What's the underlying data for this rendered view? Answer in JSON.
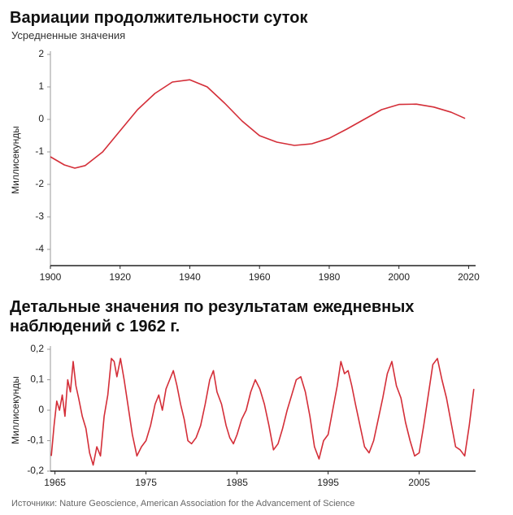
{
  "chart_data": [
    {
      "type": "line",
      "title": "Вариации продолжительности суток",
      "subtitle": "Усредненные значения",
      "y_label": "Миллисекунды",
      "color": "#d42e38",
      "x": [
        1900,
        1904,
        1907,
        1910,
        1915,
        1920,
        1925,
        1930,
        1935,
        1940,
        1945,
        1950,
        1955,
        1960,
        1965,
        1970,
        1975,
        1980,
        1985,
        1990,
        1995,
        2000,
        2005,
        2010,
        2015,
        2019
      ],
      "values": [
        -1.15,
        -1.4,
        -1.5,
        -1.42,
        -1.0,
        -0.35,
        0.3,
        0.8,
        1.15,
        1.22,
        1.0,
        0.5,
        -0.05,
        -0.5,
        -0.7,
        -0.8,
        -0.75,
        -0.58,
        -0.3,
        0.0,
        0.3,
        0.46,
        0.47,
        0.38,
        0.22,
        0.03
      ],
      "xlim": [
        1900,
        2022
      ],
      "xticks": [
        1900,
        1920,
        1940,
        1960,
        1980,
        2000,
        2020
      ],
      "ylim": [
        -4.5,
        2
      ],
      "yticks": [
        2,
        1,
        0,
        -1,
        -2,
        -3,
        -4
      ]
    },
    {
      "type": "line",
      "title": "Детальные значения по результатам ежедневных наблюдений с 1962 г.",
      "y_label": "Миллисекунды",
      "color": "#d42e38",
      "x": [
        1964.6,
        1964.9,
        1965.2,
        1965.5,
        1965.8,
        1966.1,
        1966.4,
        1966.7,
        1967.0,
        1967.3,
        1967.6,
        1968.0,
        1968.4,
        1968.8,
        1969.2,
        1969.6,
        1970.0,
        1970.4,
        1970.8,
        1971.2,
        1971.5,
        1971.8,
        1972.2,
        1972.6,
        1973.0,
        1973.5,
        1974.0,
        1974.5,
        1975.0,
        1975.5,
        1976.0,
        1976.4,
        1976.8,
        1977.2,
        1977.6,
        1978.0,
        1978.4,
        1978.8,
        1979.2,
        1979.6,
        1980.0,
        1980.5,
        1981.0,
        1981.5,
        1982.0,
        1982.4,
        1982.8,
        1983.3,
        1983.8,
        1984.2,
        1984.6,
        1985.0,
        1985.5,
        1986.0,
        1986.5,
        1987.0,
        1987.5,
        1988.0,
        1988.5,
        1989.0,
        1989.5,
        1990.0,
        1990.5,
        1991.0,
        1991.5,
        1992.0,
        1992.5,
        1993.0,
        1993.5,
        1994.0,
        1994.5,
        1995.0,
        1995.5,
        1996.0,
        1996.4,
        1996.8,
        1997.2,
        1997.6,
        1998.0,
        1998.5,
        1999.0,
        1999.5,
        2000.0,
        2000.5,
        2001.0,
        2001.5,
        2002.0,
        2002.5,
        2003.0,
        2003.5,
        2004.0,
        2004.5,
        2005.0,
        2005.5,
        2006.0,
        2006.5,
        2007.0,
        2007.5,
        2008.0,
        2008.5,
        2009.0,
        2009.5,
        2010.0,
        2010.5,
        2011.0
      ],
      "values": [
        -0.15,
        -0.05,
        0.03,
        0.0,
        0.05,
        -0.02,
        0.1,
        0.06,
        0.16,
        0.08,
        0.04,
        -0.02,
        -0.06,
        -0.14,
        -0.18,
        -0.12,
        -0.15,
        -0.02,
        0.05,
        0.17,
        0.16,
        0.11,
        0.17,
        0.1,
        0.02,
        -0.08,
        -0.15,
        -0.12,
        -0.1,
        -0.05,
        0.02,
        0.05,
        0.0,
        0.07,
        0.1,
        0.13,
        0.08,
        0.02,
        -0.03,
        -0.1,
        -0.11,
        -0.09,
        -0.05,
        0.02,
        0.1,
        0.13,
        0.06,
        0.02,
        -0.05,
        -0.09,
        -0.11,
        -0.08,
        -0.03,
        0.0,
        0.06,
        0.1,
        0.07,
        0.02,
        -0.05,
        -0.13,
        -0.11,
        -0.06,
        0.0,
        0.05,
        0.1,
        0.11,
        0.06,
        -0.02,
        -0.12,
        -0.16,
        -0.1,
        -0.08,
        0.0,
        0.08,
        0.16,
        0.12,
        0.13,
        0.08,
        0.02,
        -0.05,
        -0.12,
        -0.14,
        -0.1,
        -0.03,
        0.04,
        0.12,
        0.16,
        0.08,
        0.04,
        -0.04,
        -0.1,
        -0.15,
        -0.14,
        -0.05,
        0.05,
        0.15,
        0.17,
        0.1,
        0.04,
        -0.04,
        -0.12,
        -0.13,
        -0.15,
        -0.05,
        0.07
      ],
      "xlim": [
        1964.5,
        2011.2
      ],
      "xticks": [
        1965,
        1975,
        1985,
        1995,
        2005
      ],
      "ylim": [
        -0.2,
        0.2
      ],
      "yticks": [
        {
          "value": 0.2,
          "label": "0,2"
        },
        {
          "value": 0.1,
          "label": "0,1"
        },
        0,
        {
          "value": -0.1,
          "label": "-0,1"
        },
        {
          "value": -0.2,
          "label": "-0,2"
        }
      ]
    }
  ],
  "source": "Источники: Nature Geoscience, American Association for the Advancement of Science"
}
